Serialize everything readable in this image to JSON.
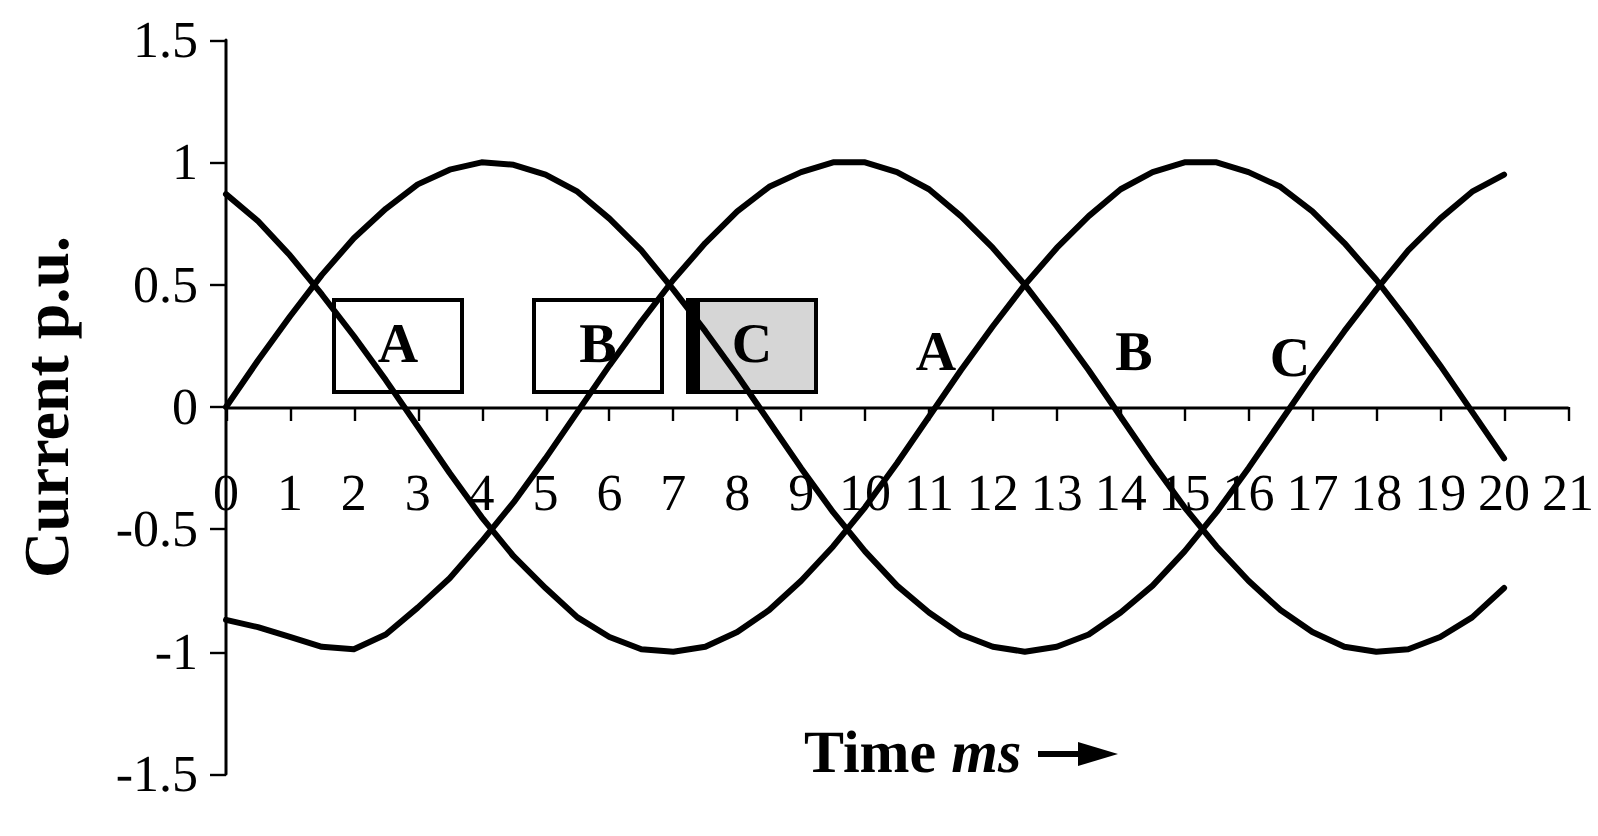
{
  "chart_data": {
    "type": "line",
    "ylabel": "Current p.u.",
    "xlabel": "Time ms",
    "x": [
      0,
      0.5,
      1,
      1.5,
      2,
      2.5,
      3,
      3.5,
      4,
      4.5,
      5,
      5.5,
      6,
      6.5,
      7,
      7.5,
      8,
      8.5,
      9,
      9.5,
      10,
      10.5,
      11,
      11.5,
      12,
      12.5,
      13,
      13.5,
      14,
      14.5,
      15,
      15.5,
      16,
      16.5,
      17,
      17.5,
      18,
      18.5,
      19,
      19.5,
      20
    ],
    "series": [
      {
        "color": "#000000",
        "values": [
          0,
          0.19,
          0.37,
          0.54,
          0.69,
          0.81,
          0.91,
          0.97,
          1,
          0.99,
          0.95,
          0.88,
          0.77,
          0.64,
          0.48,
          0.31,
          0.13,
          -0.06,
          -0.25,
          -0.43,
          -0.59,
          -0.73,
          -0.84,
          -0.93,
          -0.98,
          -1,
          -0.98,
          -0.93,
          -0.84,
          -0.73,
          -0.59,
          -0.43,
          -0.25,
          -0.06,
          0.13,
          0.31,
          0.48,
          0.64,
          0.77,
          0.88,
          0.95
        ]
      },
      {
        "color": "#000000",
        "values": [
          -0.87,
          -0.9,
          -0.94,
          -0.98,
          -0.99,
          -0.93,
          -0.82,
          -0.7,
          -0.55,
          -0.39,
          -0.21,
          -0.02,
          0.17,
          0.35,
          0.52,
          0.67,
          0.8,
          0.9,
          0.96,
          1,
          1,
          0.96,
          0.89,
          0.78,
          0.65,
          0.5,
          0.33,
          0.15,
          -0.04,
          -0.23,
          -0.41,
          -0.57,
          -0.71,
          -0.83,
          -0.92,
          -0.98,
          -1,
          -0.99,
          -0.94,
          -0.86,
          -0.74
        ]
      },
      {
        "color": "#000000",
        "values": [
          0.87,
          0.76,
          0.62,
          0.46,
          0.29,
          0.11,
          -0.08,
          -0.27,
          -0.45,
          -0.61,
          -0.74,
          -0.86,
          -0.94,
          -0.99,
          -1,
          -0.98,
          -0.92,
          -0.83,
          -0.71,
          -0.57,
          -0.41,
          -0.23,
          -0.04,
          0.15,
          0.33,
          0.5,
          0.65,
          0.78,
          0.89,
          0.96,
          1,
          1,
          0.96,
          0.9,
          0.8,
          0.67,
          0.52,
          0.35,
          0.17,
          -0.02,
          -0.21
        ]
      }
    ],
    "xlim": [
      0,
      21
    ],
    "xticks": [
      0,
      1,
      2,
      3,
      4,
      5,
      6,
      7,
      8,
      9,
      10,
      11,
      12,
      13,
      14,
      15,
      16,
      17,
      18,
      19,
      20,
      21
    ],
    "ylim": [
      -1.5,
      1.5
    ],
    "yticks": [
      -1.5,
      -1,
      -0.5,
      0,
      0.5,
      1,
      1.5
    ],
    "marker": "none",
    "line_style": "solid",
    "annotations": [
      "A",
      "B",
      "C",
      "A",
      "B",
      "C"
    ]
  }
}
